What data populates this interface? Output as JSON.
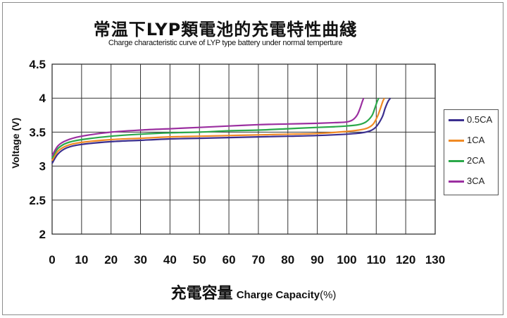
{
  "chart_data": {
    "type": "line",
    "title": "常温下LYP類電池的充電特性曲綫",
    "subtitle": "Charge characteristic curve of LYP type battery under normal temperture",
    "xlabel_zh": "充電容量",
    "xlabel_en": "Charge Capacity",
    "xlabel_unit": "(%)",
    "ylabel": "Voltage (V)",
    "xlim": [
      0,
      130
    ],
    "ylim": [
      2,
      4.5
    ],
    "xticks": [
      0,
      10,
      20,
      30,
      40,
      50,
      60,
      70,
      80,
      90,
      100,
      110,
      120,
      130
    ],
    "yticks": [
      2,
      2.5,
      3,
      3.5,
      4,
      4.5
    ],
    "ytick_labels": [
      "2",
      "2.5",
      "3",
      "3.5",
      "4",
      "4.5"
    ],
    "grid": true,
    "legend_position": "right",
    "series": [
      {
        "name": "0.5CA",
        "color": "#3b2f8f",
        "x": [
          0,
          2,
          5,
          10,
          20,
          30,
          40,
          50,
          60,
          70,
          80,
          90,
          100,
          105,
          108,
          110,
          112,
          113,
          114,
          114.8
        ],
        "y": [
          3.04,
          3.18,
          3.27,
          3.32,
          3.36,
          3.38,
          3.4,
          3.41,
          3.42,
          3.43,
          3.44,
          3.45,
          3.47,
          3.49,
          3.52,
          3.58,
          3.72,
          3.85,
          3.95,
          4.0
        ]
      },
      {
        "name": "1CA",
        "color": "#f08a24",
        "x": [
          0,
          2,
          5,
          10,
          20,
          30,
          40,
          50,
          60,
          70,
          80,
          90,
          100,
          104,
          107,
          109,
          110.5,
          111.5,
          112.3,
          112.8
        ],
        "y": [
          3.08,
          3.22,
          3.3,
          3.35,
          3.39,
          3.41,
          3.43,
          3.44,
          3.45,
          3.46,
          3.47,
          3.48,
          3.51,
          3.53,
          3.56,
          3.62,
          3.74,
          3.86,
          3.96,
          4.0
        ]
      },
      {
        "name": "2CA",
        "color": "#2aa84a",
        "x": [
          0,
          2,
          5,
          10,
          20,
          30,
          40,
          50,
          60,
          70,
          80,
          90,
          96,
          100,
          104,
          106.5,
          108.5,
          109.5,
          110.3,
          110.8
        ],
        "y": [
          3.12,
          3.26,
          3.34,
          3.39,
          3.44,
          3.47,
          3.49,
          3.5,
          3.52,
          3.53,
          3.55,
          3.57,
          3.58,
          3.59,
          3.61,
          3.65,
          3.74,
          3.85,
          3.95,
          4.0
        ]
      },
      {
        "name": "3CA",
        "color": "#9b2fa0",
        "x": [
          0,
          2,
          5,
          10,
          20,
          30,
          40,
          50,
          60,
          70,
          80,
          90,
          96,
          100,
          102,
          103.5,
          104.5,
          105.2,
          105.7
        ],
        "y": [
          3.15,
          3.3,
          3.38,
          3.44,
          3.5,
          3.53,
          3.55,
          3.57,
          3.59,
          3.61,
          3.62,
          3.63,
          3.64,
          3.65,
          3.68,
          3.75,
          3.85,
          3.94,
          4.0
        ]
      }
    ]
  }
}
